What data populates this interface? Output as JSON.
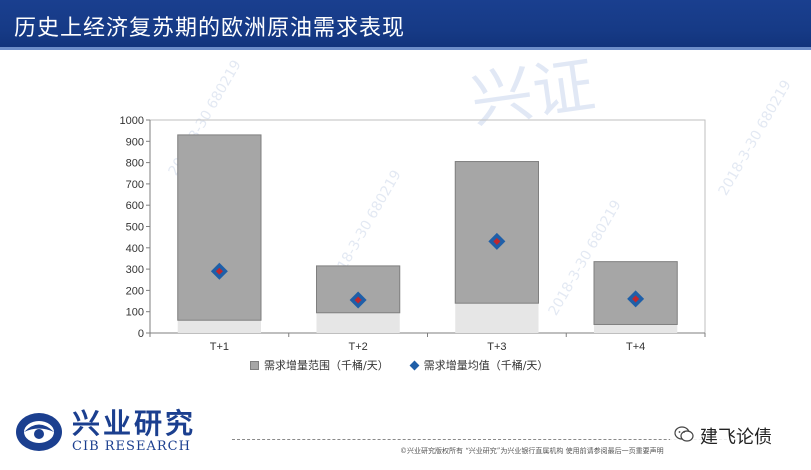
{
  "header": {
    "title": "历史上经济复苏期的欧洲原油需求表现"
  },
  "watermark": {
    "text": "2018-3-30 680219",
    "logo_mark": "兴证"
  },
  "chart_data": {
    "type": "bar",
    "subtype": "floating-range-with-marker",
    "categories": [
      "T+1",
      "T+2",
      "T+3",
      "T+4"
    ],
    "series": [
      {
        "name": "需求增量范围（千桶/天）",
        "kind": "range",
        "low": [
          60,
          95,
          140,
          40
        ],
        "high": [
          930,
          315,
          805,
          335
        ]
      },
      {
        "name": "需求增量均值（千桶/天）",
        "kind": "marker",
        "values": [
          290,
          155,
          430,
          160
        ]
      }
    ],
    "ylim": [
      0,
      1000
    ],
    "yticks": [
      0,
      100,
      200,
      300,
      400,
      500,
      600,
      700,
      800,
      900,
      1000
    ],
    "grid": false,
    "legend_position": "bottom",
    "colors": {
      "range_fill": "#a6a6a6",
      "range_stroke": "#7f7f7f",
      "below_range": "#e6e6e6",
      "marker_outer": "#1f5fa8",
      "marker_inner": "#c0272d"
    }
  },
  "legend": {
    "range_label": "需求增量范围（千桶/天）",
    "mean_label": "需求增量均值（千桶/天）"
  },
  "logo": {
    "cn": "兴业研究",
    "en": "CIB RESEARCH"
  },
  "footer": {
    "disclaimer": "©兴业研究版权所有  “兴业研究”为兴业银行直属机构  使用前请参阅最后一页重要声明",
    "wechat_name": "建飞论债"
  },
  "icons": {
    "wechat": "wechat-bubble-icon"
  }
}
